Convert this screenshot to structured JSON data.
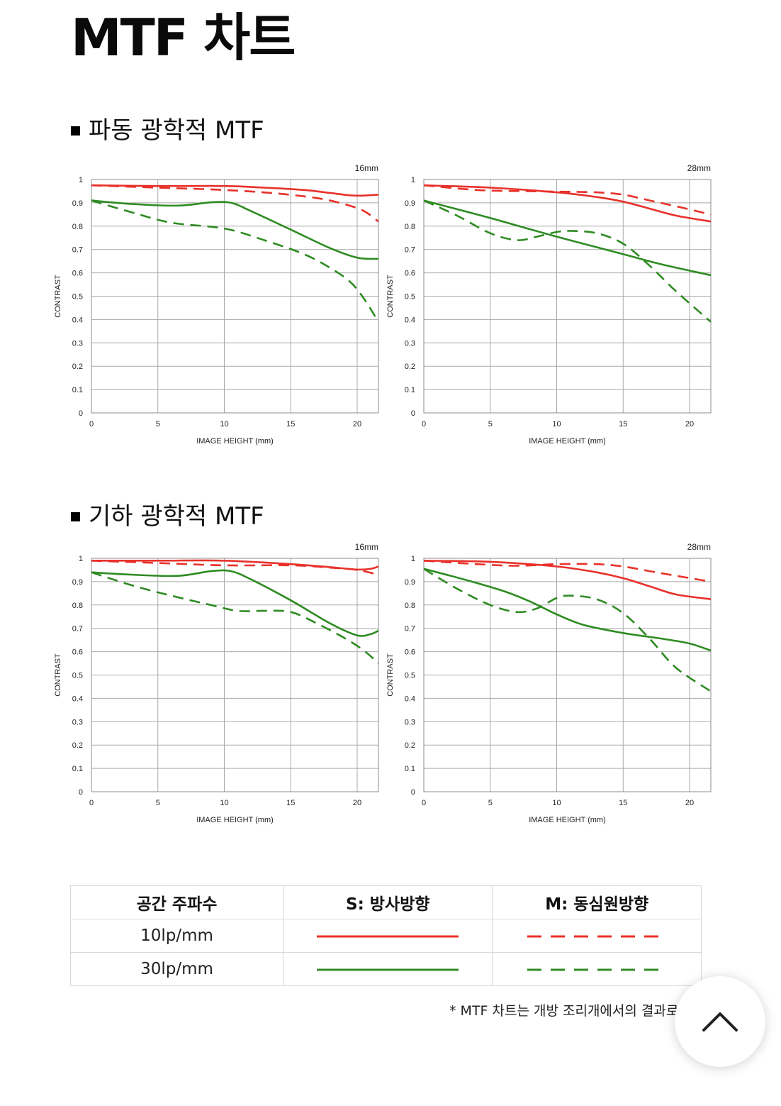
{
  "page": {
    "title": "MTF 차트",
    "section_diffraction": "파동 광학적 MTF",
    "section_geometric": "기하 광학적 MTF",
    "footnote": "* MTF 차트는 개방 조리개에서의 결과로"
  },
  "legend": {
    "header_frequency": "공간 주파수",
    "header_sagittal": "S: 방사방향",
    "header_meridional": "M: 동심원방향",
    "row_10": "10lp/mm",
    "row_30": "30lp/mm",
    "colors": {
      "lp10": "#e8312a",
      "lp30": "#2e8b22"
    }
  },
  "scroll_top": {
    "icon": "chevron-up-icon"
  },
  "chart_data": [
    {
      "type": "line",
      "section": "파동 광학적 MTF",
      "focal": "16mm",
      "xlabel": "IMAGE HEIGHT (mm)",
      "ylabel": "CONTRAST",
      "xlim": [
        0,
        21.6
      ],
      "ylim": [
        0,
        1
      ],
      "xticks": [
        0,
        5,
        10,
        15,
        20
      ],
      "yticks": [
        0,
        0.1,
        0.2,
        0.3,
        0.4,
        0.5,
        0.6,
        0.7,
        0.8,
        0.9,
        1
      ],
      "grid": true,
      "series": [
        {
          "freq": "10lp/mm",
          "dir": "S",
          "color": "#e8312a",
          "dashed": false,
          "x": [
            0,
            5,
            10,
            13,
            16,
            18,
            19.5,
            20.5,
            21.6
          ],
          "y": [
            0.975,
            0.972,
            0.972,
            0.965,
            0.955,
            0.942,
            0.932,
            0.931,
            0.935
          ]
        },
        {
          "freq": "10lp/mm",
          "dir": "M",
          "color": "#e8312a",
          "dashed": true,
          "x": [
            0,
            5,
            10,
            14,
            17,
            19,
            20.5,
            21.6
          ],
          "y": [
            0.975,
            0.965,
            0.955,
            0.94,
            0.92,
            0.895,
            0.865,
            0.82
          ]
        },
        {
          "freq": "30lp/mm",
          "dir": "S",
          "color": "#2e8b22",
          "dashed": false,
          "x": [
            0,
            3,
            6.5,
            9,
            10.5,
            12,
            15,
            18,
            20,
            21.6
          ],
          "y": [
            0.91,
            0.895,
            0.888,
            0.902,
            0.9,
            0.865,
            0.785,
            0.705,
            0.665,
            0.66
          ]
        },
        {
          "freq": "30lp/mm",
          "dir": "M",
          "color": "#2e8b22",
          "dashed": true,
          "x": [
            0,
            3,
            6,
            10,
            13,
            16,
            18,
            19.5,
            20.5,
            21.6
          ],
          "y": [
            0.91,
            0.86,
            0.815,
            0.79,
            0.74,
            0.68,
            0.62,
            0.56,
            0.49,
            0.39
          ]
        }
      ]
    },
    {
      "type": "line",
      "section": "파동 광학적 MTF",
      "focal": "28mm",
      "xlabel": "IMAGE HEIGHT (mm)",
      "ylabel": "CONTRAST",
      "xlim": [
        0,
        21.6
      ],
      "ylim": [
        0,
        1
      ],
      "xticks": [
        0,
        5,
        10,
        15,
        20
      ],
      "yticks": [
        0,
        0.1,
        0.2,
        0.3,
        0.4,
        0.5,
        0.6,
        0.7,
        0.8,
        0.9,
        1
      ],
      "grid": true,
      "series": [
        {
          "freq": "10lp/mm",
          "dir": "S",
          "color": "#e8312a",
          "dashed": false,
          "x": [
            0,
            5,
            10,
            13,
            15,
            17,
            19,
            21.6
          ],
          "y": [
            0.975,
            0.965,
            0.945,
            0.925,
            0.905,
            0.875,
            0.845,
            0.82
          ]
        },
        {
          "freq": "10lp/mm",
          "dir": "M",
          "color": "#e8312a",
          "dashed": true,
          "x": [
            0,
            4,
            7.5,
            10,
            13,
            15,
            17,
            19,
            21.6
          ],
          "y": [
            0.975,
            0.955,
            0.95,
            0.948,
            0.945,
            0.935,
            0.91,
            0.885,
            0.85
          ]
        },
        {
          "freq": "30lp/mm",
          "dir": "S",
          "color": "#2e8b22",
          "dashed": false,
          "x": [
            0,
            5,
            10,
            15,
            18,
            21.6
          ],
          "y": [
            0.91,
            0.835,
            0.755,
            0.68,
            0.635,
            0.59
          ]
        },
        {
          "freq": "30lp/mm",
          "dir": "M",
          "color": "#2e8b22",
          "dashed": true,
          "x": [
            0,
            2.5,
            5,
            7,
            8.5,
            10,
            11,
            13,
            15,
            17,
            19,
            21.6
          ],
          "y": [
            0.91,
            0.845,
            0.77,
            0.74,
            0.755,
            0.775,
            0.78,
            0.77,
            0.725,
            0.63,
            0.52,
            0.39
          ]
        }
      ]
    },
    {
      "type": "line",
      "section": "기하 광학적 MTF",
      "focal": "16mm",
      "xlabel": "IMAGE HEIGHT (mm)",
      "ylabel": "CONTRAST",
      "xlim": [
        0,
        21.6
      ],
      "ylim": [
        0,
        1
      ],
      "xticks": [
        0,
        5,
        10,
        15,
        20
      ],
      "yticks": [
        0,
        0.1,
        0.2,
        0.3,
        0.4,
        0.5,
        0.6,
        0.7,
        0.8,
        0.9,
        1
      ],
      "grid": true,
      "series": [
        {
          "freq": "10lp/mm",
          "dir": "S",
          "color": "#e8312a",
          "dashed": false,
          "x": [
            0,
            5,
            10,
            15,
            18,
            20,
            21,
            21.6
          ],
          "y": [
            0.99,
            0.99,
            0.99,
            0.975,
            0.962,
            0.952,
            0.955,
            0.965
          ]
        },
        {
          "freq": "10lp/mm",
          "dir": "M",
          "color": "#e8312a",
          "dashed": true,
          "x": [
            0,
            5,
            10,
            15,
            18,
            20,
            21.6
          ],
          "y": [
            0.99,
            0.98,
            0.97,
            0.97,
            0.96,
            0.95,
            0.93
          ]
        },
        {
          "freq": "30lp/mm",
          "dir": "S",
          "color": "#2e8b22",
          "dashed": false,
          "x": [
            0,
            3,
            6.5,
            9,
            10.5,
            12,
            15,
            18,
            20,
            21,
            21.6
          ],
          "y": [
            0.94,
            0.93,
            0.925,
            0.945,
            0.945,
            0.91,
            0.82,
            0.72,
            0.67,
            0.675,
            0.69
          ]
        },
        {
          "freq": "30lp/mm",
          "dir": "M",
          "color": "#2e8b22",
          "dashed": true,
          "x": [
            0,
            3,
            6,
            9,
            11,
            13,
            15,
            17,
            19,
            20.5,
            21.6
          ],
          "y": [
            0.94,
            0.885,
            0.84,
            0.8,
            0.775,
            0.775,
            0.77,
            0.72,
            0.66,
            0.605,
            0.55
          ]
        }
      ]
    },
    {
      "type": "line",
      "section": "기하 광학적 MTF",
      "focal": "28mm",
      "xlabel": "IMAGE HEIGHT (mm)",
      "ylabel": "CONTRAST",
      "xlim": [
        0,
        21.6
      ],
      "ylim": [
        0,
        1
      ],
      "xticks": [
        0,
        5,
        10,
        15,
        20
      ],
      "yticks": [
        0,
        0.1,
        0.2,
        0.3,
        0.4,
        0.5,
        0.6,
        0.7,
        0.8,
        0.9,
        1
      ],
      "grid": true,
      "series": [
        {
          "freq": "10lp/mm",
          "dir": "S",
          "color": "#e8312a",
          "dashed": false,
          "x": [
            0,
            5,
            10,
            13,
            15,
            17,
            19,
            21.6
          ],
          "y": [
            0.99,
            0.985,
            0.965,
            0.94,
            0.915,
            0.88,
            0.845,
            0.825
          ]
        },
        {
          "freq": "10lp/mm",
          "dir": "M",
          "color": "#e8312a",
          "dashed": true,
          "x": [
            0,
            4,
            7,
            10,
            13,
            15,
            17,
            19,
            21.6
          ],
          "y": [
            0.99,
            0.975,
            0.968,
            0.975,
            0.975,
            0.965,
            0.945,
            0.925,
            0.9
          ]
        },
        {
          "freq": "30lp/mm",
          "dir": "S",
          "color": "#2e8b22",
          "dashed": false,
          "x": [
            0,
            3,
            6,
            8,
            10,
            12,
            15,
            18,
            20,
            21.6
          ],
          "y": [
            0.955,
            0.91,
            0.86,
            0.815,
            0.76,
            0.715,
            0.68,
            0.655,
            0.635,
            0.605
          ]
        },
        {
          "freq": "30lp/mm",
          "dir": "M",
          "color": "#2e8b22",
          "dashed": true,
          "x": [
            0,
            2.5,
            5,
            7,
            8.5,
            10,
            11,
            13,
            15,
            17,
            19,
            21.6
          ],
          "y": [
            0.955,
            0.87,
            0.8,
            0.77,
            0.785,
            0.83,
            0.84,
            0.825,
            0.765,
            0.655,
            0.53,
            0.43
          ]
        }
      ]
    }
  ]
}
